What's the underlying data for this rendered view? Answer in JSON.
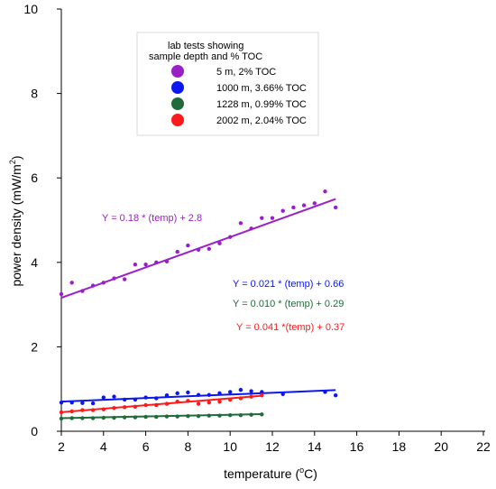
{
  "chart_data": {
    "type": "scatter",
    "xlabel_main": "temperature (",
    "xlabel_sup": "o",
    "xlabel_end": "C)",
    "ylabel_main": "power density (mW/m",
    "ylabel_sup": "2",
    "ylabel_end": ")",
    "xlim": [
      2,
      22
    ],
    "ylim": [
      0,
      10
    ],
    "xticks": [
      "2",
      "4",
      "6",
      "8",
      "10",
      "12",
      "14",
      "16",
      "18",
      "20",
      "22"
    ],
    "yticks": [
      "0",
      "2",
      "4",
      "6",
      "8",
      "10"
    ],
    "legend": {
      "title_line1": "lab tests showing",
      "title_line2": "sample depth and % TOC",
      "placement": "top-center"
    },
    "series": [
      {
        "name": "5 m, 2% TOC",
        "color": "#9b1fc7",
        "equation": "Y = 0.18 * (temp) + 2.8",
        "fit": {
          "x_start": 2,
          "x_end": 15,
          "slope": 0.18,
          "intercept": 2.8
        },
        "points": [
          [
            2,
            3.25
          ],
          [
            2.5,
            3.52
          ],
          [
            3,
            3.32
          ],
          [
            3.5,
            3.45
          ],
          [
            4,
            3.52
          ],
          [
            4.5,
            3.62
          ],
          [
            5,
            3.6
          ],
          [
            5.5,
            3.95
          ],
          [
            6,
            3.95
          ],
          [
            6.5,
            4.0
          ],
          [
            7,
            4.02
          ],
          [
            7.5,
            4.25
          ],
          [
            8,
            4.4
          ],
          [
            8.5,
            4.3
          ],
          [
            9,
            4.32
          ],
          [
            9.5,
            4.45
          ],
          [
            10,
            4.6
          ],
          [
            10.5,
            4.93
          ],
          [
            11,
            4.8
          ],
          [
            11.5,
            5.05
          ],
          [
            12,
            5.05
          ],
          [
            12.5,
            5.22
          ],
          [
            13,
            5.3
          ],
          [
            13.5,
            5.35
          ],
          [
            14,
            5.4
          ],
          [
            14.5,
            5.68
          ],
          [
            15,
            5.3
          ]
        ]
      },
      {
        "name": "1000 m, 3.66% TOC",
        "color": "#0a17f0",
        "equation": "Y = 0.021 * (temp) + 0.66",
        "fit": {
          "x_start": 2,
          "x_end": 15,
          "slope": 0.021,
          "intercept": 0.66
        },
        "points": [
          [
            2,
            0.68
          ],
          [
            2.5,
            0.68
          ],
          [
            3,
            0.67
          ],
          [
            3.5,
            0.66
          ],
          [
            4,
            0.8
          ],
          [
            4.5,
            0.82
          ],
          [
            5,
            0.75
          ],
          [
            5.5,
            0.75
          ],
          [
            6,
            0.8
          ],
          [
            6.5,
            0.78
          ],
          [
            7,
            0.85
          ],
          [
            7.5,
            0.9
          ],
          [
            8,
            0.92
          ],
          [
            8.5,
            0.86
          ],
          [
            9,
            0.86
          ],
          [
            9.5,
            0.9
          ],
          [
            10,
            0.93
          ],
          [
            10.5,
            0.98
          ],
          [
            11,
            0.95
          ],
          [
            11.5,
            0.93
          ],
          [
            12.5,
            0.88
          ],
          [
            14.5,
            0.93
          ],
          [
            15,
            0.85
          ]
        ]
      },
      {
        "name": "1228 m, 0.99% TOC",
        "color": "#1f6b3a",
        "equation": "Y = 0.010 * (temp) + 0.29",
        "fit": {
          "x_start": 2,
          "x_end": 11.5,
          "slope": 0.01,
          "intercept": 0.29
        },
        "points": [
          [
            2,
            0.3
          ],
          [
            2.5,
            0.31
          ],
          [
            3,
            0.31
          ],
          [
            3.5,
            0.31
          ],
          [
            4,
            0.32
          ],
          [
            4.5,
            0.32
          ],
          [
            5,
            0.33
          ],
          [
            5.5,
            0.33
          ],
          [
            6,
            0.34
          ],
          [
            6.5,
            0.34
          ],
          [
            7,
            0.35
          ],
          [
            7.5,
            0.35
          ],
          [
            8,
            0.36
          ],
          [
            8.5,
            0.36
          ],
          [
            9,
            0.37
          ],
          [
            9.5,
            0.37
          ],
          [
            10,
            0.38
          ],
          [
            10.5,
            0.38
          ],
          [
            11,
            0.39
          ],
          [
            11.5,
            0.4
          ]
        ]
      },
      {
        "name": "2002 m, 2.04% TOC",
        "color": "#ff1a1a",
        "equation": "Y = 0.041 *(temp) + 0.37",
        "fit": {
          "x_start": 2,
          "x_end": 11.5,
          "slope": 0.041,
          "intercept": 0.37
        },
        "points": [
          [
            2,
            0.45
          ],
          [
            2.5,
            0.47
          ],
          [
            3,
            0.5
          ],
          [
            3.5,
            0.5
          ],
          [
            4,
            0.52
          ],
          [
            4.5,
            0.55
          ],
          [
            5,
            0.57
          ],
          [
            5.5,
            0.58
          ],
          [
            6,
            0.62
          ],
          [
            6.5,
            0.62
          ],
          [
            7,
            0.65
          ],
          [
            7.5,
            0.7
          ],
          [
            8,
            0.72
          ],
          [
            8.5,
            0.65
          ],
          [
            9,
            0.68
          ],
          [
            9.5,
            0.7
          ],
          [
            10,
            0.75
          ],
          [
            10.5,
            0.78
          ],
          [
            11,
            0.82
          ],
          [
            11.5,
            0.85
          ]
        ]
      }
    ]
  }
}
